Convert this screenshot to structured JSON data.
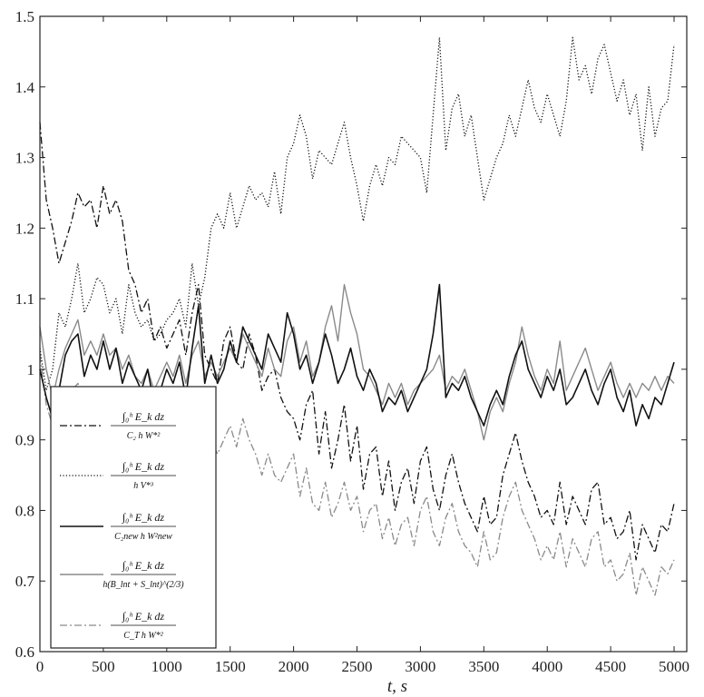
{
  "chart_data": {
    "type": "line",
    "title": "",
    "xlabel": "t, s",
    "ylabel": "",
    "xlim": [
      0,
      5100
    ],
    "ylim": [
      0.6,
      1.5
    ],
    "x_ticks": [
      "0",
      "500",
      "1000",
      "1500",
      "2000",
      "2500",
      "3000",
      "3500",
      "4000",
      "4500",
      "5000"
    ],
    "y_ticks": [
      "0.6",
      "0.7",
      "0.8",
      "0.9",
      "1",
      "1.1",
      "1.2",
      "1.3",
      "1.4",
      "1.5"
    ],
    "grid": false,
    "legend_position": "bottom-left",
    "x": [
      0,
      50,
      100,
      150,
      200,
      250,
      300,
      350,
      400,
      450,
      500,
      550,
      600,
      650,
      700,
      750,
      800,
      850,
      900,
      950,
      1000,
      1050,
      1100,
      1150,
      1200,
      1250,
      1300,
      1350,
      1400,
      1450,
      1500,
      1550,
      1600,
      1650,
      1700,
      1750,
      1800,
      1850,
      1900,
      1950,
      2000,
      2050,
      2100,
      2150,
      2200,
      2250,
      2300,
      2350,
      2400,
      2450,
      2500,
      2550,
      2600,
      2650,
      2700,
      2750,
      2800,
      2850,
      2900,
      2950,
      3000,
      3050,
      3100,
      3150,
      3200,
      3250,
      3300,
      3350,
      3400,
      3450,
      3500,
      3550,
      3600,
      3650,
      3700,
      3750,
      3800,
      3850,
      3900,
      3950,
      4000,
      4050,
      4100,
      4150,
      4200,
      4250,
      4300,
      4350,
      4400,
      4450,
      4500,
      4550,
      4600,
      4650,
      4700,
      4750,
      4800,
      4850,
      4900,
      4950,
      5000
    ],
    "series": [
      {
        "name": "∫₀ʰ E_k dz / (C₂ h W*²)",
        "style": "dashdot",
        "color": "#111111",
        "values": [
          1.35,
          1.24,
          1.2,
          1.15,
          1.18,
          1.21,
          1.25,
          1.23,
          1.24,
          1.2,
          1.26,
          1.22,
          1.24,
          1.21,
          1.14,
          1.12,
          1.08,
          1.1,
          1.04,
          1.06,
          1.03,
          1.05,
          1.07,
          1.02,
          1.08,
          1.12,
          1.02,
          1.0,
          0.98,
          1.04,
          1.06,
          1.01,
          1.0,
          1.05,
          1.02,
          0.97,
          0.99,
          1.0,
          0.96,
          0.94,
          0.93,
          0.9,
          0.95,
          0.97,
          0.88,
          0.94,
          0.86,
          0.9,
          0.95,
          0.87,
          0.92,
          0.83,
          0.88,
          0.89,
          0.82,
          0.87,
          0.8,
          0.84,
          0.86,
          0.81,
          0.87,
          0.89,
          0.83,
          0.8,
          0.85,
          0.88,
          0.84,
          0.81,
          0.79,
          0.77,
          0.82,
          0.78,
          0.79,
          0.85,
          0.88,
          0.91,
          0.87,
          0.84,
          0.82,
          0.79,
          0.8,
          0.78,
          0.84,
          0.78,
          0.82,
          0.8,
          0.78,
          0.83,
          0.84,
          0.78,
          0.79,
          0.76,
          0.77,
          0.8,
          0.73,
          0.78,
          0.76,
          0.74,
          0.78,
          0.77,
          0.81
        ]
      },
      {
        "name": "∫₀ʰ E_k dz / (h V*³)",
        "style": "dotted",
        "color": "#111111",
        "values": [
          1.03,
          0.97,
          1.0,
          1.08,
          1.06,
          1.1,
          1.15,
          1.08,
          1.1,
          1.13,
          1.12,
          1.08,
          1.1,
          1.05,
          1.12,
          1.08,
          1.06,
          1.07,
          1.04,
          1.05,
          1.07,
          1.08,
          1.1,
          1.06,
          1.15,
          1.09,
          1.13,
          1.2,
          1.22,
          1.2,
          1.25,
          1.2,
          1.23,
          1.26,
          1.24,
          1.25,
          1.23,
          1.28,
          1.22,
          1.3,
          1.32,
          1.36,
          1.33,
          1.27,
          1.31,
          1.3,
          1.29,
          1.32,
          1.35,
          1.3,
          1.26,
          1.21,
          1.26,
          1.29,
          1.26,
          1.3,
          1.29,
          1.33,
          1.32,
          1.31,
          1.3,
          1.25,
          1.36,
          1.47,
          1.31,
          1.37,
          1.39,
          1.33,
          1.36,
          1.3,
          1.24,
          1.27,
          1.3,
          1.32,
          1.36,
          1.33,
          1.37,
          1.41,
          1.37,
          1.35,
          1.39,
          1.36,
          1.33,
          1.38,
          1.47,
          1.41,
          1.43,
          1.39,
          1.44,
          1.46,
          1.42,
          1.38,
          1.41,
          1.36,
          1.39,
          1.31,
          1.4,
          1.33,
          1.37,
          1.38,
          1.46
        ]
      },
      {
        "name": "∫₀ʰ E_k dz / (C₂new h W²new)",
        "style": "solid",
        "color": "#111111",
        "width": 1.6,
        "values": [
          1.0,
          0.96,
          0.93,
          0.97,
          1.02,
          1.04,
          1.05,
          0.99,
          1.02,
          1.0,
          1.04,
          1.0,
          1.03,
          0.98,
          1.01,
          0.99,
          0.97,
          1.0,
          0.95,
          0.97,
          1.0,
          0.98,
          1.01,
          0.96,
          1.03,
          1.09,
          0.98,
          1.02,
          0.98,
          1.0,
          1.04,
          1.01,
          1.06,
          1.04,
          1.02,
          1.0,
          1.05,
          1.03,
          1.01,
          1.08,
          1.05,
          1.0,
          1.02,
          0.98,
          1.01,
          1.05,
          1.02,
          0.98,
          1.0,
          1.03,
          0.99,
          0.97,
          1.0,
          0.98,
          0.94,
          0.96,
          0.95,
          0.97,
          0.94,
          0.96,
          0.98,
          1.0,
          1.05,
          1.12,
          0.96,
          0.98,
          0.97,
          0.99,
          0.96,
          0.94,
          0.92,
          0.95,
          0.97,
          0.95,
          0.99,
          1.02,
          1.04,
          1.0,
          0.98,
          0.96,
          0.99,
          0.97,
          1.0,
          0.95,
          0.96,
          0.98,
          1.0,
          0.97,
          0.95,
          0.98,
          1.0,
          0.96,
          0.94,
          0.97,
          0.92,
          0.95,
          0.93,
          0.96,
          0.95,
          0.98,
          1.01
        ]
      },
      {
        "name": "∫₀ʰ E_k dz / (h(B_lnt + S_lnt)^(2/3))",
        "style": "solid",
        "color": "#8a8a8a",
        "width": 1.4,
        "values": [
          1.06,
          1.0,
          0.96,
          1.0,
          1.03,
          1.05,
          1.07,
          1.02,
          1.04,
          1.02,
          1.05,
          1.02,
          1.03,
          1.0,
          1.02,
          0.99,
          0.98,
          1.0,
          0.97,
          0.99,
          1.01,
          0.99,
          1.02,
          0.98,
          1.02,
          1.04,
          0.99,
          1.01,
          0.99,
          1.01,
          1.03,
          1.01,
          1.05,
          1.03,
          1.01,
          0.99,
          1.03,
          1.0,
          0.99,
          1.04,
          1.06,
          1.01,
          1.04,
          0.99,
          1.01,
          1.06,
          1.09,
          1.04,
          1.12,
          1.08,
          1.05,
          1.0,
          0.99,
          0.97,
          0.95,
          0.98,
          0.96,
          0.98,
          0.95,
          0.97,
          0.98,
          0.99,
          1.0,
          1.02,
          0.97,
          0.99,
          0.98,
          1.0,
          0.97,
          0.94,
          0.9,
          0.94,
          0.96,
          0.94,
          0.98,
          1.01,
          1.06,
          1.02,
          0.99,
          0.97,
          1.0,
          0.98,
          1.04,
          0.97,
          0.99,
          1.01,
          1.03,
          1.0,
          0.97,
          0.99,
          1.01,
          0.98,
          0.96,
          0.98,
          0.96,
          0.98,
          0.97,
          0.99,
          0.97,
          0.99,
          0.98
        ]
      },
      {
        "name": "∫₀ʰ E_k dz / (C_T h W*²)",
        "style": "dashdot",
        "color": "#8a8a8a",
        "values": [
          1.02,
          0.95,
          0.92,
          0.93,
          0.95,
          0.97,
          0.98,
          0.95,
          0.96,
          0.95,
          0.97,
          0.94,
          0.96,
          0.92,
          0.94,
          0.91,
          0.9,
          0.92,
          0.88,
          0.9,
          0.92,
          0.89,
          0.93,
          0.88,
          0.91,
          0.94,
          0.89,
          0.9,
          0.88,
          0.9,
          0.92,
          0.89,
          0.93,
          0.9,
          0.88,
          0.85,
          0.88,
          0.85,
          0.84,
          0.86,
          0.88,
          0.82,
          0.86,
          0.81,
          0.8,
          0.84,
          0.79,
          0.81,
          0.84,
          0.8,
          0.82,
          0.77,
          0.8,
          0.81,
          0.76,
          0.79,
          0.75,
          0.78,
          0.79,
          0.75,
          0.8,
          0.82,
          0.77,
          0.75,
          0.79,
          0.81,
          0.77,
          0.75,
          0.74,
          0.72,
          0.77,
          0.73,
          0.74,
          0.79,
          0.82,
          0.84,
          0.8,
          0.78,
          0.76,
          0.73,
          0.75,
          0.73,
          0.77,
          0.72,
          0.76,
          0.74,
          0.72,
          0.76,
          0.77,
          0.72,
          0.73,
          0.7,
          0.71,
          0.74,
          0.68,
          0.72,
          0.7,
          0.68,
          0.72,
          0.71,
          0.73
        ]
      }
    ]
  }
}
